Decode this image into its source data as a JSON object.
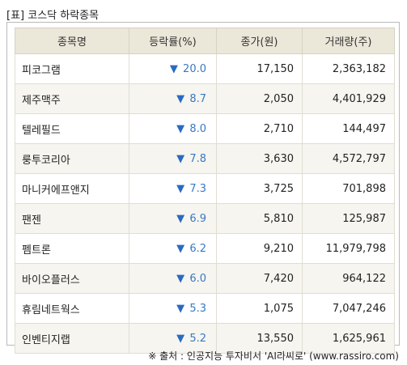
{
  "title": "[표] 코스닥 하락종목",
  "headers": [
    "종목명",
    "등락률(%)",
    "종가(원)",
    "거래량(주)"
  ],
  "rows": [
    {
      "name": "피코그램",
      "rate": "20.0",
      "price": "17,150",
      "volume": "2,363,182"
    },
    {
      "name": "제주맥주",
      "rate": "8.7",
      "price": "2,050",
      "volume": "4,401,929"
    },
    {
      "name": "텔레필드",
      "rate": "8.0",
      "price": "2,710",
      "volume": "144,497"
    },
    {
      "name": "룽투코리아",
      "rate": "7.8",
      "price": "3,630",
      "volume": "4,572,797"
    },
    {
      "name": "마니커에프앤지",
      "rate": "7.3",
      "price": "3,725",
      "volume": "701,898"
    },
    {
      "name": "팬젠",
      "rate": "6.9",
      "price": "5,810",
      "volume": "125,987"
    },
    {
      "name": "펨트론",
      "rate": "6.2",
      "price": "9,210",
      "volume": "11,979,798"
    },
    {
      "name": "바이오플러스",
      "rate": "6.0",
      "price": "7,420",
      "volume": "964,122"
    },
    {
      "name": "휴림네트웍스",
      "rate": "5.3",
      "price": "1,075",
      "volume": "7,047,246"
    },
    {
      "name": "인벤티지랩",
      "rate": "5.2",
      "price": "13,550",
      "volume": "1,625,961"
    }
  ],
  "down_arrow": "▼",
  "source": "※ 출처 : 인공지능 투자비서 'AI라씨로' (www.rassiro.com)",
  "colors": {
    "header_bg": "#ebe7d9",
    "down": "#3a78c3",
    "row_alt": "#f6f5f0"
  }
}
